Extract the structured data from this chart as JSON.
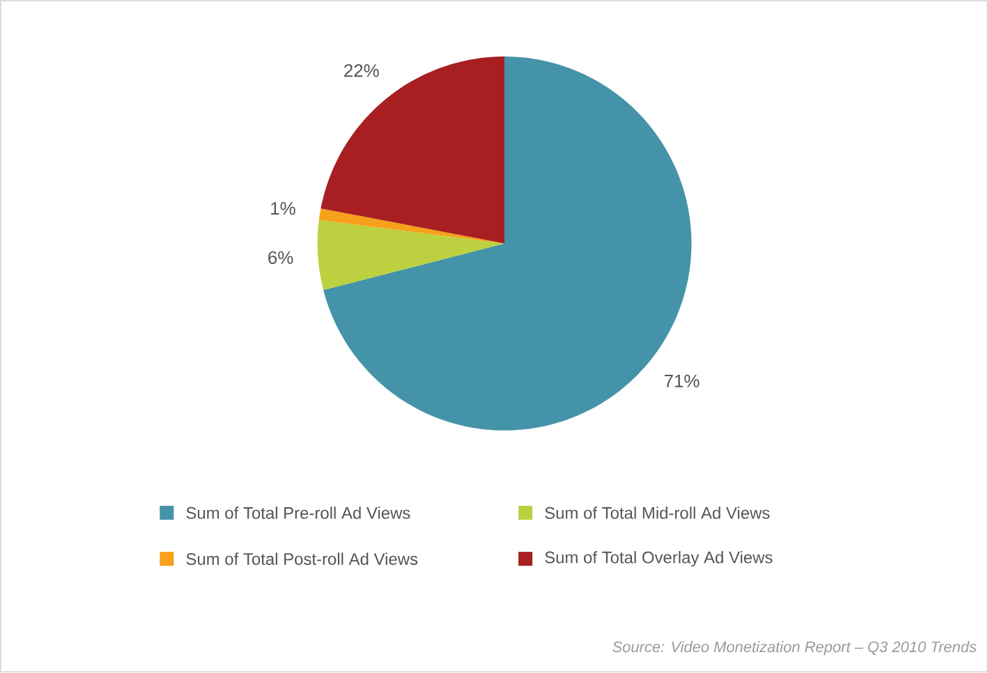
{
  "chart_data": {
    "type": "pie",
    "categories": [
      "Sum of Total Pre-roll Ad Views",
      "Sum of Total Mid-roll Ad Views",
      "Sum of Total Post-roll Ad Views",
      "Sum of Total Overlay Ad Views"
    ],
    "values": [
      71,
      6,
      1,
      22
    ],
    "colors": [
      "#4593a8",
      "#bdd140",
      "#f7a11a",
      "#a81f22"
    ],
    "value_labels": [
      "71%",
      "6%",
      "1%",
      "22%"
    ],
    "legend": "bottom",
    "annotations": [
      "Source:  Video Monetization Report – Q3 2010 Trends"
    ]
  }
}
